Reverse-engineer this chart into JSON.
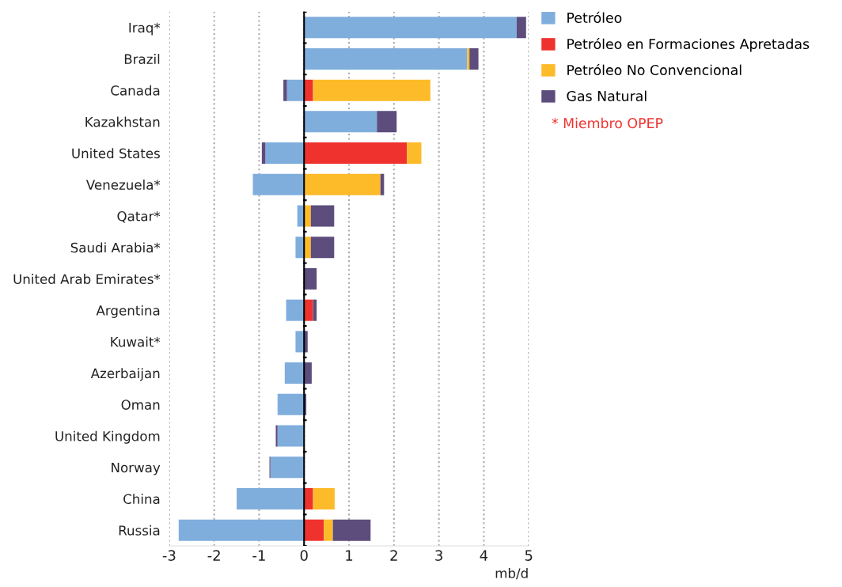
{
  "chart_data": {
    "type": "bar",
    "orientation": "horizontal",
    "stacked": true,
    "categories": [
      "Iraq*",
      "Brazil",
      "Canada",
      "Kazakhstan",
      "United States",
      "Venezuela*",
      "Qatar*",
      "Saudi Arabia*",
      "United Arab Emirates*",
      "Argentina",
      "Kuwait*",
      "Azerbaijan",
      "Oman",
      "United Kingdom",
      "Norway",
      "China",
      "Russia"
    ],
    "series": [
      {
        "name": "Petróleo",
        "color": "#7faedd",
        "values": [
          4.73,
          3.63,
          -0.38,
          1.62,
          -0.86,
          -1.14,
          -0.15,
          -0.19,
          null,
          -0.4,
          -0.19,
          -0.43,
          -0.59,
          -0.59,
          -0.75,
          -1.5,
          -2.79
        ]
      },
      {
        "name": "Petróleo en Formaciones Apretadas",
        "color": "#ef322e",
        "values": [
          null,
          null,
          0.2,
          null,
          2.29,
          null,
          null,
          null,
          null,
          0.2,
          null,
          null,
          null,
          null,
          null,
          0.2,
          0.44
        ]
      },
      {
        "name": "Petróleo No Convencional",
        "color": "#fdbb2a",
        "values": [
          null,
          0.05,
          2.61,
          null,
          0.32,
          1.7,
          0.15,
          0.15,
          null,
          null,
          null,
          null,
          null,
          null,
          null,
          0.48,
          0.2
        ]
      },
      {
        "name": "Gas Natural",
        "color": "#5d4d7d",
        "values": [
          0.21,
          0.2,
          -0.08,
          0.44,
          -0.08,
          0.08,
          0.52,
          0.52,
          0.28,
          0.08,
          0.08,
          0.17,
          0.05,
          -0.04,
          -0.02,
          null,
          0.84
        ]
      }
    ],
    "xlim": [
      -3,
      5
    ],
    "xticks": [
      -3,
      -2,
      -1,
      0,
      1,
      2,
      3,
      4,
      5
    ],
    "xlabel": "mb/d",
    "grid": "x",
    "legend": "top right",
    "annotations": [
      "* Miembro OPEP"
    ]
  }
}
